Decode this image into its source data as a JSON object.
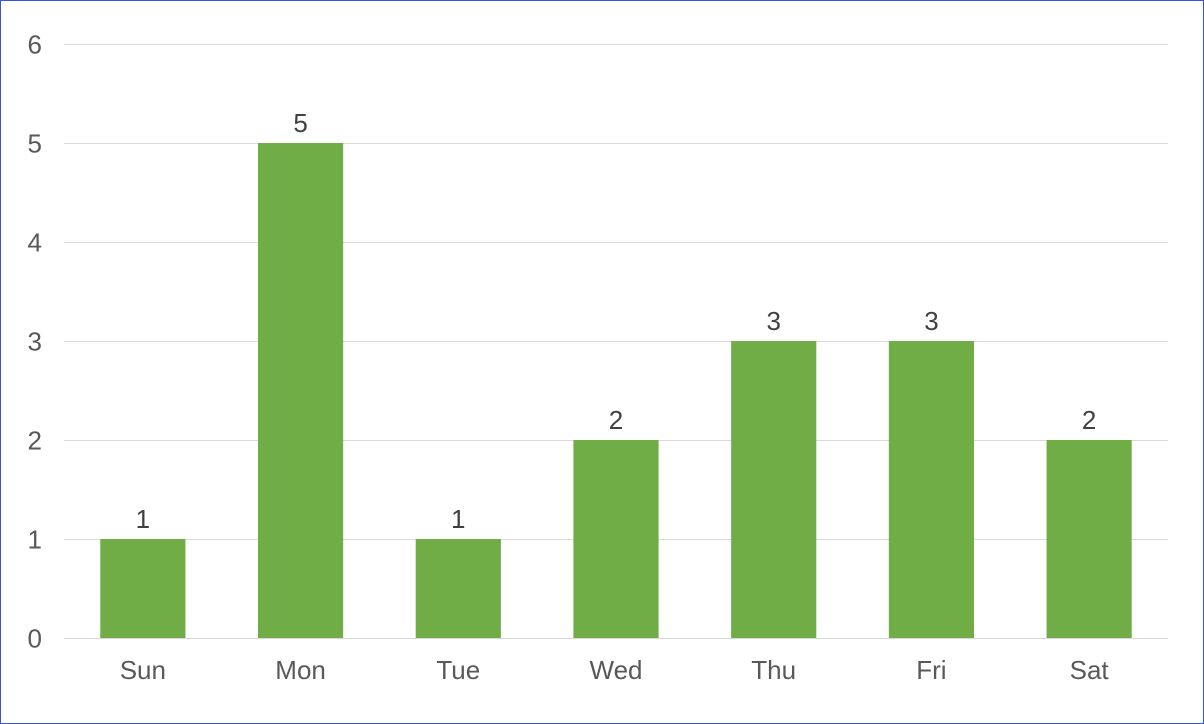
{
  "chart_data": {
    "type": "bar",
    "title": "",
    "xlabel": "",
    "ylabel": "",
    "categories": [
      "Sun",
      "Mon",
      "Tue",
      "Wed",
      "Thu",
      "Fri",
      "Sat"
    ],
    "values": [
      1,
      5,
      1,
      2,
      3,
      3,
      2
    ],
    "ylim": [
      0,
      6
    ],
    "yticks": [
      "0",
      "1",
      "2",
      "3",
      "4",
      "5",
      "6"
    ],
    "grid": true,
    "legend": "none",
    "colors": {
      "bar": "#70ad47",
      "border": "#3355dd",
      "grid": "#d9d9d9",
      "tick_text": "#595959",
      "label_text": "#404040"
    }
  }
}
